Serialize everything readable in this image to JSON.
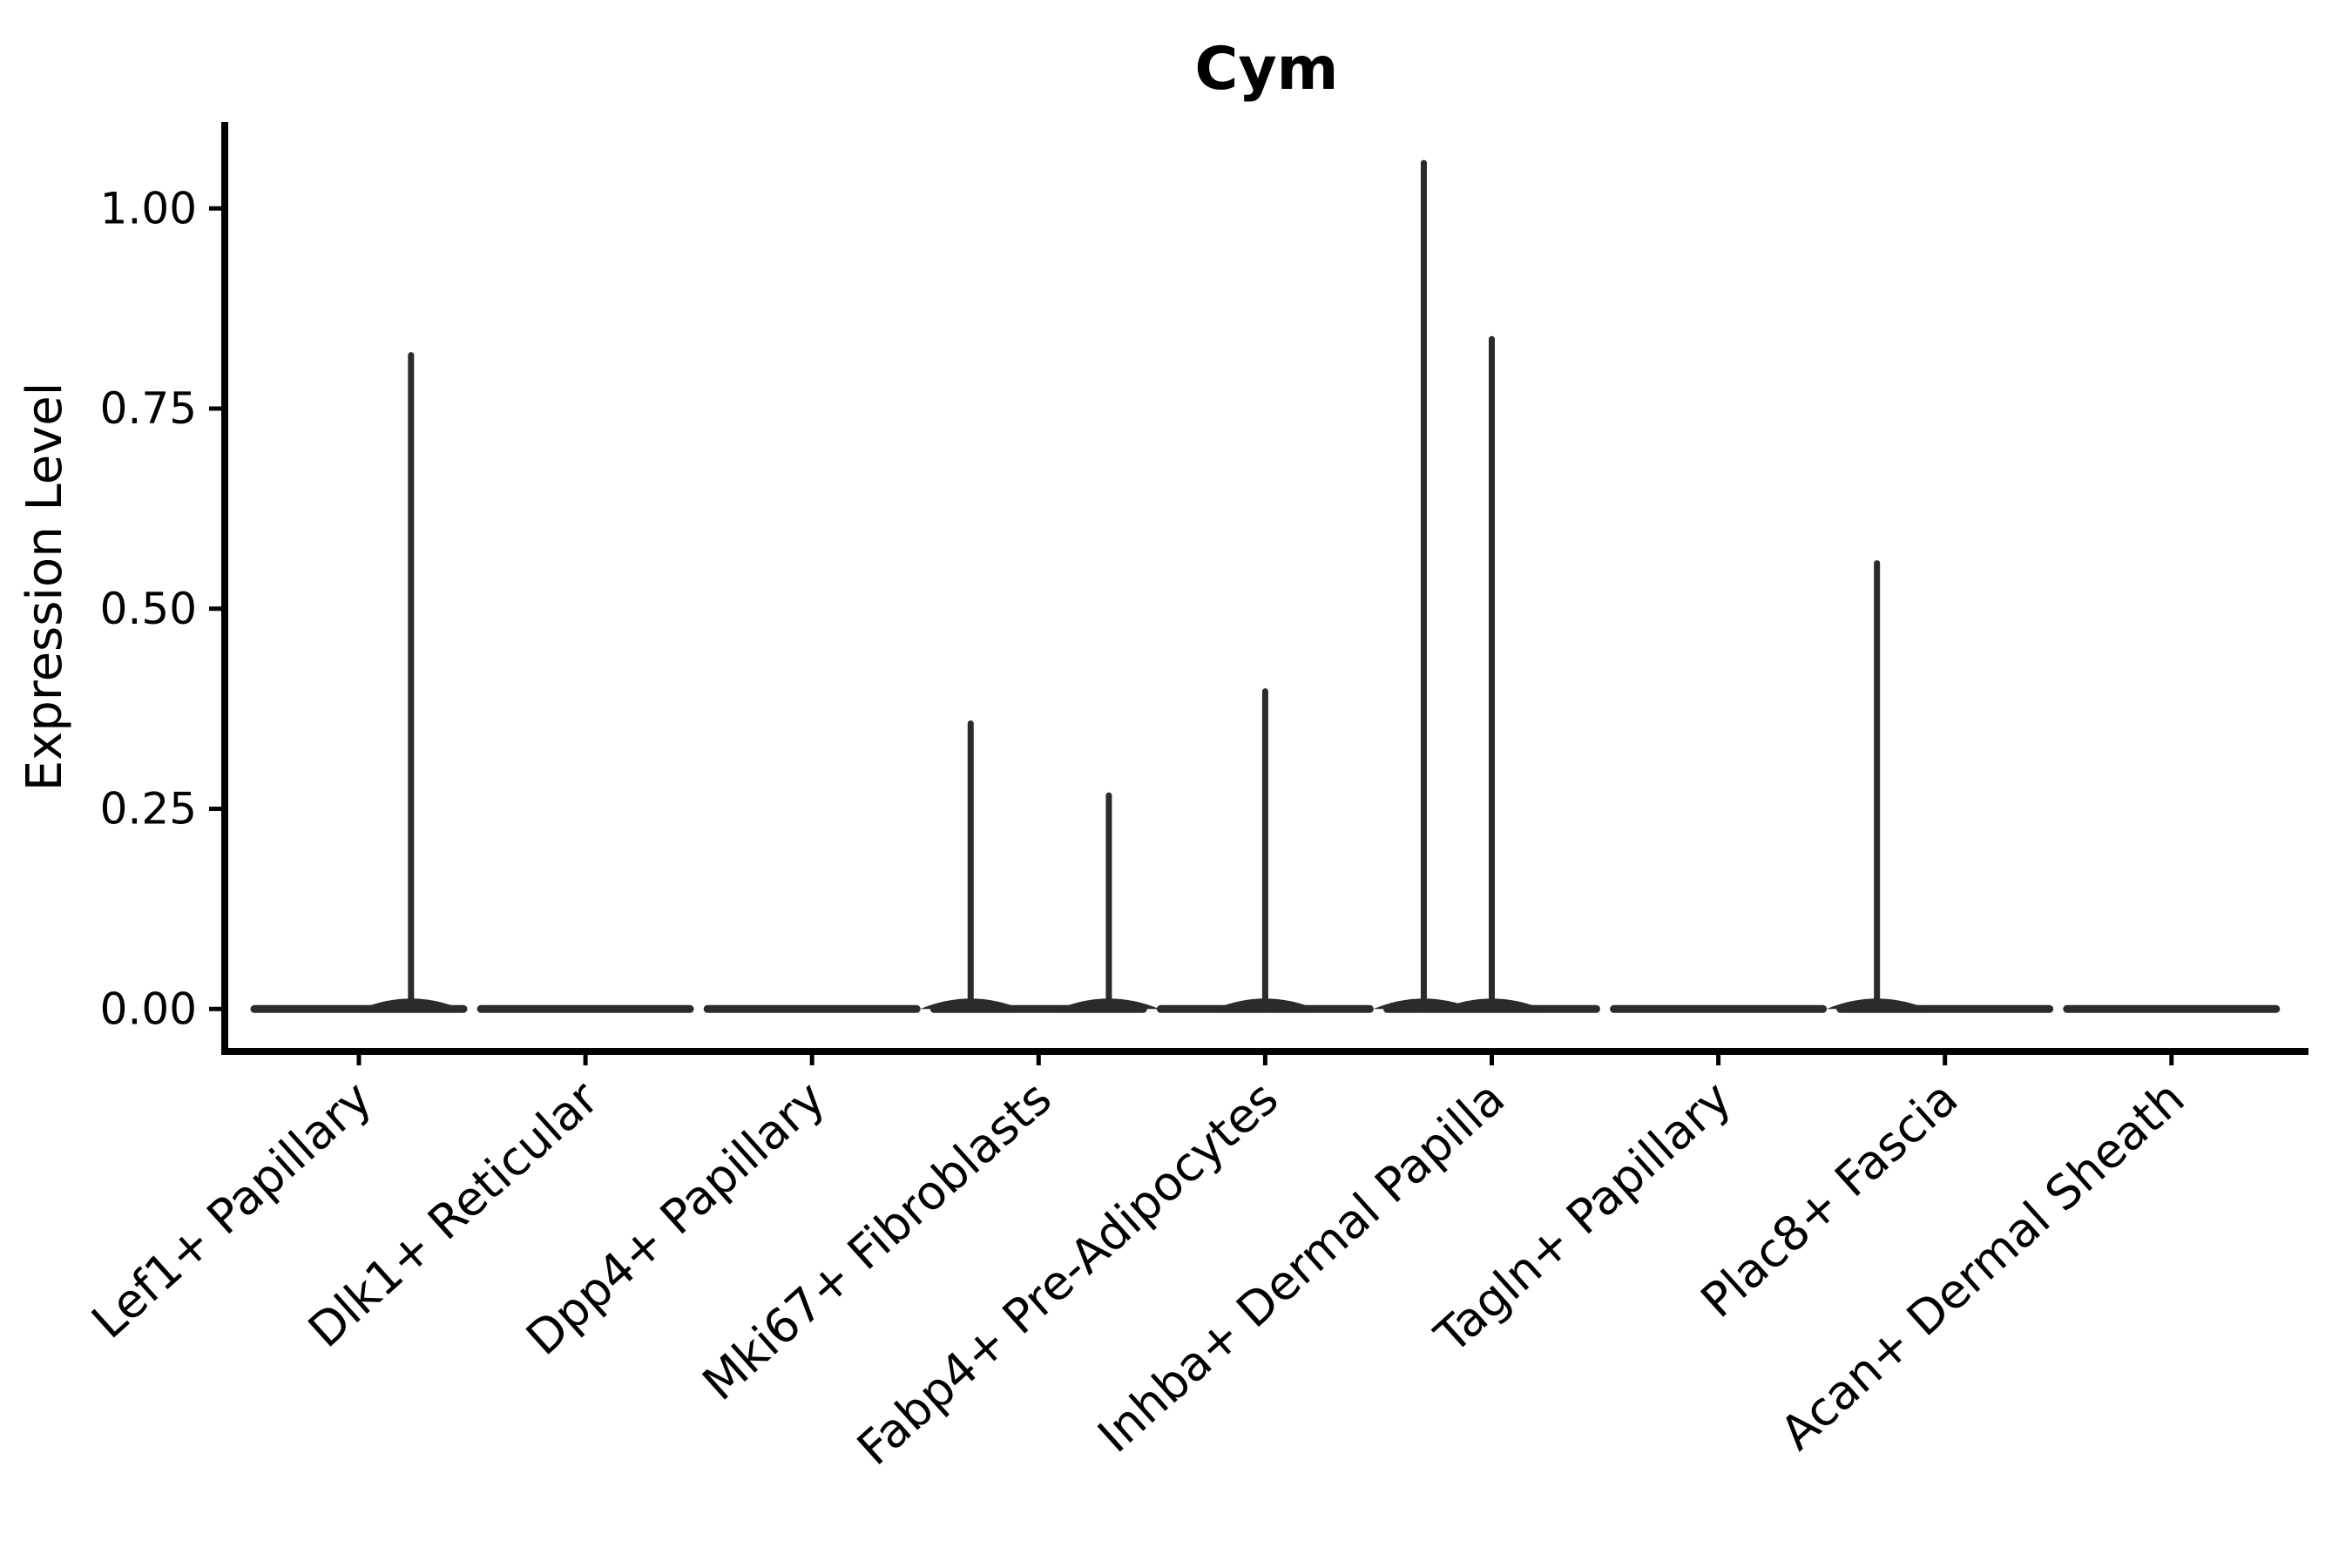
{
  "figure": {
    "title": "Cym"
  },
  "chart_data": {
    "type": "violin",
    "title": "Cym",
    "ylabel": "Expression Level",
    "xlabel": "",
    "background": "#ffffff",
    "axis_color": "#000000",
    "violin_color": "#2b2b2b",
    "text_color": "#000000",
    "grid": false,
    "legend": "none",
    "ylim": [
      -0.053,
      1.108
    ],
    "yticks": [
      0,
      0.25,
      0.5,
      0.75,
      1.0
    ],
    "ytick_labels": [
      "0.00",
      "0.25",
      "0.50",
      "0.75",
      "1.00"
    ],
    "categories": [
      "Lef1+ Papillary",
      "Dlk1+ Reticular",
      "Dpp4+ Papillary",
      "Mki67+ Fibroblasts",
      "Fabp4+ Pre-Adipocytes",
      "Inhba+ Dermal Papilla",
      "Tagln+ Papillary",
      "Plac8+ Fascia",
      "Acan+ Dermal Sheath"
    ],
    "violins": [
      {
        "category": "Lef1+ Papillary",
        "baseline_value": 0.0,
        "max_value": 0.82,
        "spikes": [
          {
            "value": 0.82,
            "offset": 0.23
          }
        ]
      },
      {
        "category": "Dlk1+ Reticular",
        "baseline_value": 0.0,
        "max_value": 0.0,
        "spikes": []
      },
      {
        "category": "Dpp4+ Papillary",
        "baseline_value": 0.0,
        "max_value": 0.0,
        "spikes": []
      },
      {
        "category": "Mki67+ Fibroblasts",
        "baseline_value": 0.0,
        "max_value": 0.36,
        "spikes": [
          {
            "value": 0.36,
            "offset": -0.3
          },
          {
            "value": 0.27,
            "offset": 0.31
          }
        ]
      },
      {
        "category": "Fabp4+ Pre-Adipocytes",
        "baseline_value": 0.0,
        "max_value": 0.4,
        "spikes": [
          {
            "value": 0.4,
            "offset": 0.0
          }
        ]
      },
      {
        "category": "Inhba+ Dermal Papilla",
        "baseline_value": 0.0,
        "max_value": 1.06,
        "spikes": [
          {
            "value": 1.06,
            "offset": -0.3
          },
          {
            "value": 0.84,
            "offset": 0.0
          }
        ]
      },
      {
        "category": "Tagln+ Papillary",
        "baseline_value": 0.0,
        "max_value": 0.0,
        "spikes": []
      },
      {
        "category": "Plac8+ Fascia",
        "baseline_value": 0.0,
        "max_value": 0.56,
        "spikes": [
          {
            "value": 0.56,
            "offset": -0.3
          }
        ]
      },
      {
        "category": "Acan+ Dermal Sheath",
        "baseline_value": 0.0,
        "max_value": 0.0,
        "spikes": []
      }
    ]
  }
}
